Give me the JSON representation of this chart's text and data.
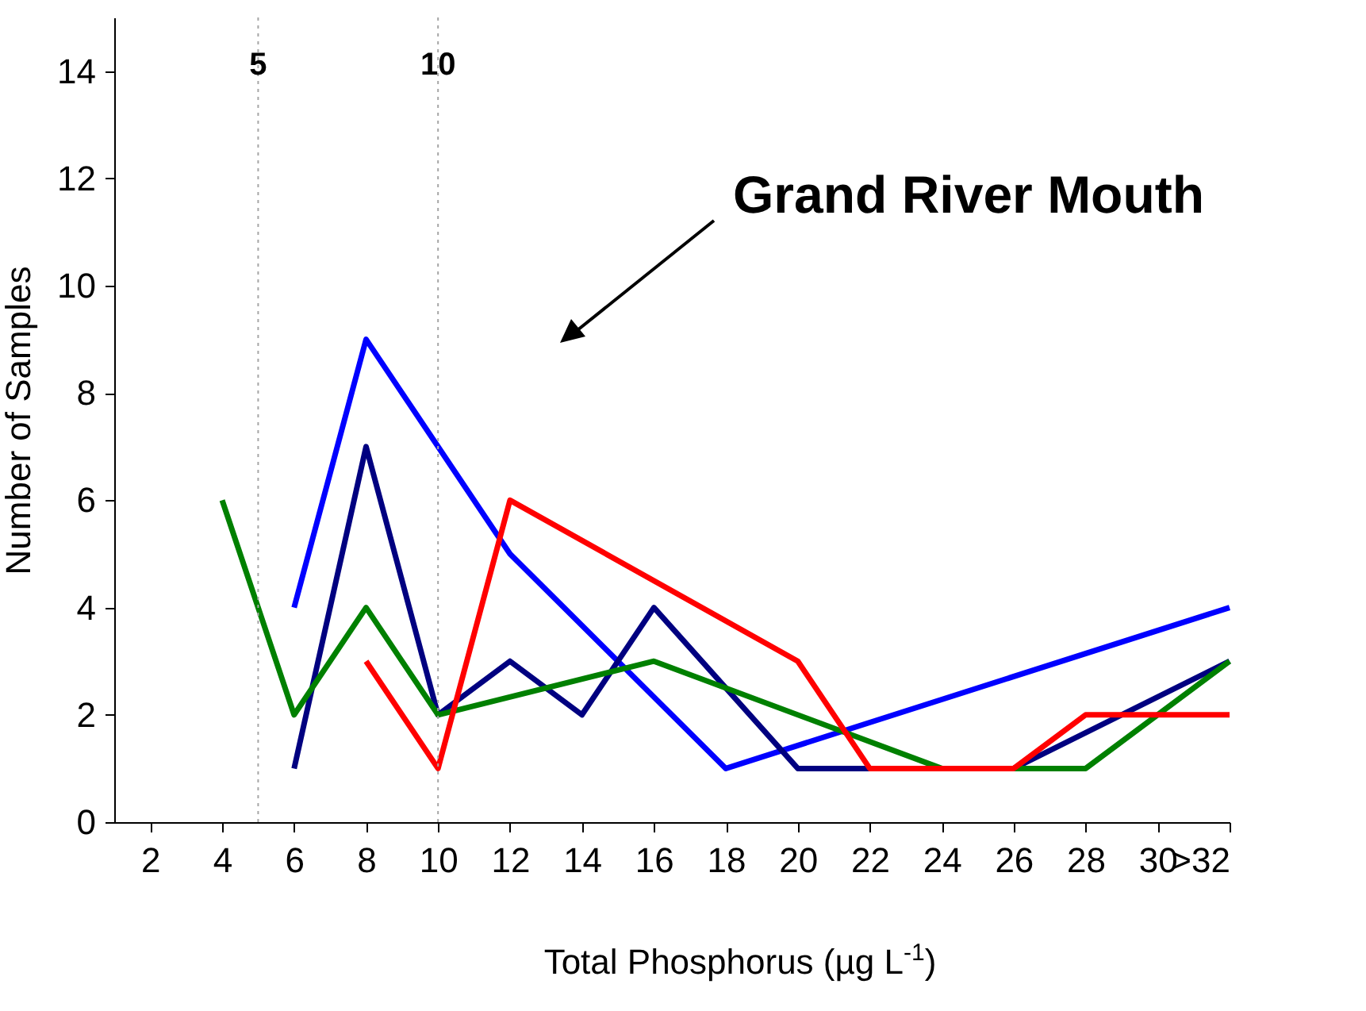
{
  "chart_data": {
    "type": "line",
    "xlabel": "Total Phosphorus (µg L$^{-1}$)",
    "ylabel": "Number of Samples",
    "annotations": [
      "Grand River Mouth"
    ],
    "xlim": [
      1,
      32
    ],
    "xticks": [
      2,
      4,
      6,
      8,
      10,
      12,
      14,
      16,
      18,
      20,
      22,
      24,
      26,
      28,
      30,
      {
        "value": 32,
        "label": ">32"
      }
    ],
    "ylim": [
      0,
      15
    ],
    "yticks": [
      0,
      2,
      4,
      6,
      8,
      10,
      12,
      14
    ],
    "grid": false,
    "line_style": "solid",
    "marker": "none",
    "ref_lines": [
      {
        "axis": "x",
        "value": 5,
        "label": "5",
        "color": "#a6a6a6",
        "line_style": "dotted"
      },
      {
        "axis": "x",
        "value": 10,
        "label": "10",
        "color": "#a6a6a6",
        "line_style": "dotted"
      }
    ],
    "series": [
      {
        "color": "#0000ff",
        "x": [
          6,
          8,
          12,
          18,
          32
        ],
        "values": [
          4,
          9,
          5,
          1,
          4
        ]
      },
      {
        "color": "#000080",
        "x": [
          6,
          8,
          10,
          12,
          14,
          16,
          20,
          22,
          24,
          26,
          32
        ],
        "values": [
          1,
          7,
          2,
          3,
          2,
          4,
          1,
          1,
          1,
          1,
          3
        ]
      },
      {
        "color": "#008000",
        "x": [
          4,
          6,
          8,
          10,
          16,
          24,
          26,
          28,
          32
        ],
        "values": [
          6,
          2,
          4,
          2,
          3,
          1,
          1,
          1,
          3
        ]
      },
      {
        "color": "#ff0000",
        "x": [
          8,
          10,
          12,
          20,
          22,
          26,
          28,
          32
        ],
        "values": [
          3,
          1,
          6,
          3,
          1,
          1,
          2,
          2
        ]
      }
    ]
  }
}
